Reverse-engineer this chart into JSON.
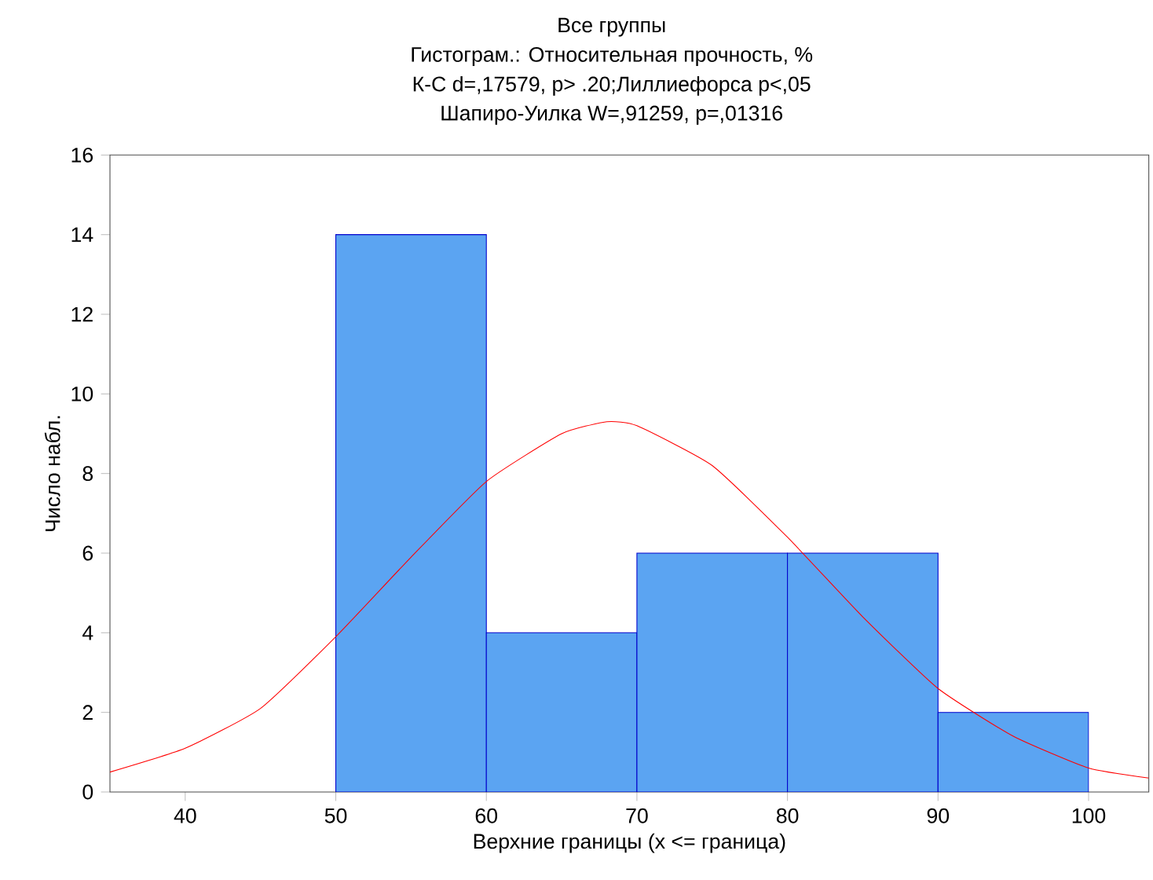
{
  "chart_data": {
    "type": "histogram",
    "title": "Все группы",
    "subtitle": "Гистограм.: Относительная прочность, %",
    "annotations": [
      "К-С d=,17579, p> .20;Лиллиефорса p<,05",
      "Шапиро-Уилка W=,91259, p=,01316"
    ],
    "xlabel": "Верхние границы (x <= граница)",
    "ylabel": "Число набл.",
    "bins": [
      50,
      60,
      70,
      80,
      90,
      100
    ],
    "series": [
      {
        "color": "#5ba4f2",
        "values": [
          14,
          4,
          6,
          6,
          2
        ]
      },
      {
        "type": "line",
        "color": "#ff0000",
        "x": [
          35,
          40,
          45,
          50,
          55,
          60,
          65,
          68,
          70,
          75,
          80,
          85,
          90,
          95,
          100,
          104
        ],
        "values": [
          0.5,
          1.1,
          2.1,
          3.9,
          5.9,
          7.8,
          9.0,
          9.3,
          9.2,
          8.2,
          6.4,
          4.4,
          2.6,
          1.4,
          0.6,
          0.35
        ]
      }
    ],
    "xlim": [
      35,
      104
    ],
    "ylim": [
      0,
      16
    ],
    "xticks": [
      40,
      50,
      60,
      70,
      80,
      90,
      100
    ],
    "yticks": [
      0,
      2,
      4,
      6,
      8,
      10,
      12,
      14,
      16
    ],
    "grid": false
  }
}
